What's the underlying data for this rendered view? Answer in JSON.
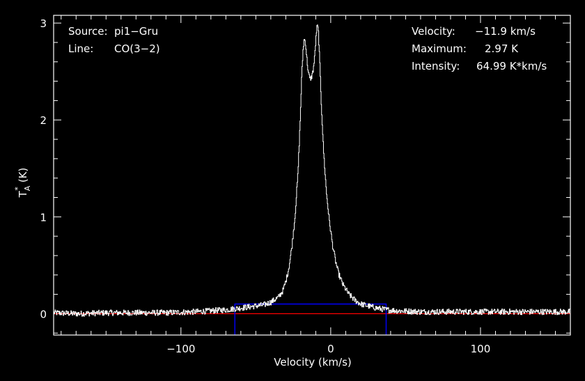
{
  "chart_data": {
    "type": "line",
    "xlabel": "Velocity (km/s)",
    "ylabel_main": "T",
    "ylabel_sup": "*",
    "ylabel_sub": "A",
    "ylabel_unit": "(K)",
    "xlim": [
      -185,
      160
    ],
    "ylim": [
      -0.22,
      3.08
    ],
    "x_ticks": [
      -100,
      0,
      100
    ],
    "x_tick_labels": [
      "−100",
      "0",
      "100"
    ],
    "y_ticks": [
      0,
      1,
      2,
      3
    ],
    "y_tick_labels": [
      "0",
      "1",
      "2",
      "3"
    ],
    "background": "#000000",
    "frame_color": "#ffffff",
    "spectrum_color": "#ffffff",
    "baseline_color": "#ff0000",
    "window_color": "#0000ff",
    "baseline_level": 0.0,
    "integration_window": {
      "x_min": -64,
      "x_max": 37,
      "y_top": 0.1
    },
    "spectrum_points": [
      [
        -185,
        0.01
      ],
      [
        -170,
        0.0
      ],
      [
        -150,
        0.01
      ],
      [
        -130,
        0.01
      ],
      [
        -110,
        0.01
      ],
      [
        -90,
        0.02
      ],
      [
        -80,
        0.03
      ],
      [
        -70,
        0.04
      ],
      [
        -60,
        0.06
      ],
      [
        -50,
        0.08
      ],
      [
        -45,
        0.09
      ],
      [
        -40,
        0.12
      ],
      [
        -35,
        0.17
      ],
      [
        -32,
        0.24
      ],
      [
        -30,
        0.34
      ],
      [
        -28,
        0.48
      ],
      [
        -26,
        0.7
      ],
      [
        -24,
        1.0
      ],
      [
        -22,
        1.45
      ],
      [
        -20.5,
        2.0
      ],
      [
        -19.5,
        2.45
      ],
      [
        -18.5,
        2.75
      ],
      [
        -17.8,
        2.84
      ],
      [
        -17,
        2.8
      ],
      [
        -16,
        2.62
      ],
      [
        -15,
        2.48
      ],
      [
        -14,
        2.42
      ],
      [
        -13,
        2.44
      ],
      [
        -12,
        2.5
      ],
      [
        -11,
        2.62
      ],
      [
        -10.2,
        2.8
      ],
      [
        -9.5,
        2.94
      ],
      [
        -9,
        2.97
      ],
      [
        -8.3,
        2.9
      ],
      [
        -7.5,
        2.6
      ],
      [
        -6.5,
        2.2
      ],
      [
        -5,
        1.7
      ],
      [
        -3,
        1.25
      ],
      [
        -1,
        0.95
      ],
      [
        1,
        0.72
      ],
      [
        3,
        0.55
      ],
      [
        5,
        0.42
      ],
      [
        8,
        0.3
      ],
      [
        12,
        0.2
      ],
      [
        16,
        0.14
      ],
      [
        20,
        0.1
      ],
      [
        25,
        0.08
      ],
      [
        30,
        0.06
      ],
      [
        37,
        0.04
      ],
      [
        45,
        0.03
      ],
      [
        60,
        0.02
      ],
      [
        80,
        0.02
      ],
      [
        100,
        0.02
      ],
      [
        120,
        0.02
      ],
      [
        140,
        0.02
      ],
      [
        160,
        0.02
      ]
    ]
  },
  "info_left": [
    {
      "key": "Source:",
      "value": "pi1−Gru"
    },
    {
      "key": "Line:",
      "value": "CO(3−2)"
    }
  ],
  "info_right": [
    {
      "key": "Velocity:",
      "value": "−11.9 km/s"
    },
    {
      "key": "Maximum:",
      "value": "2.97 K"
    },
    {
      "key": "Intensity:",
      "value": "64.99 K*km/s"
    }
  ]
}
